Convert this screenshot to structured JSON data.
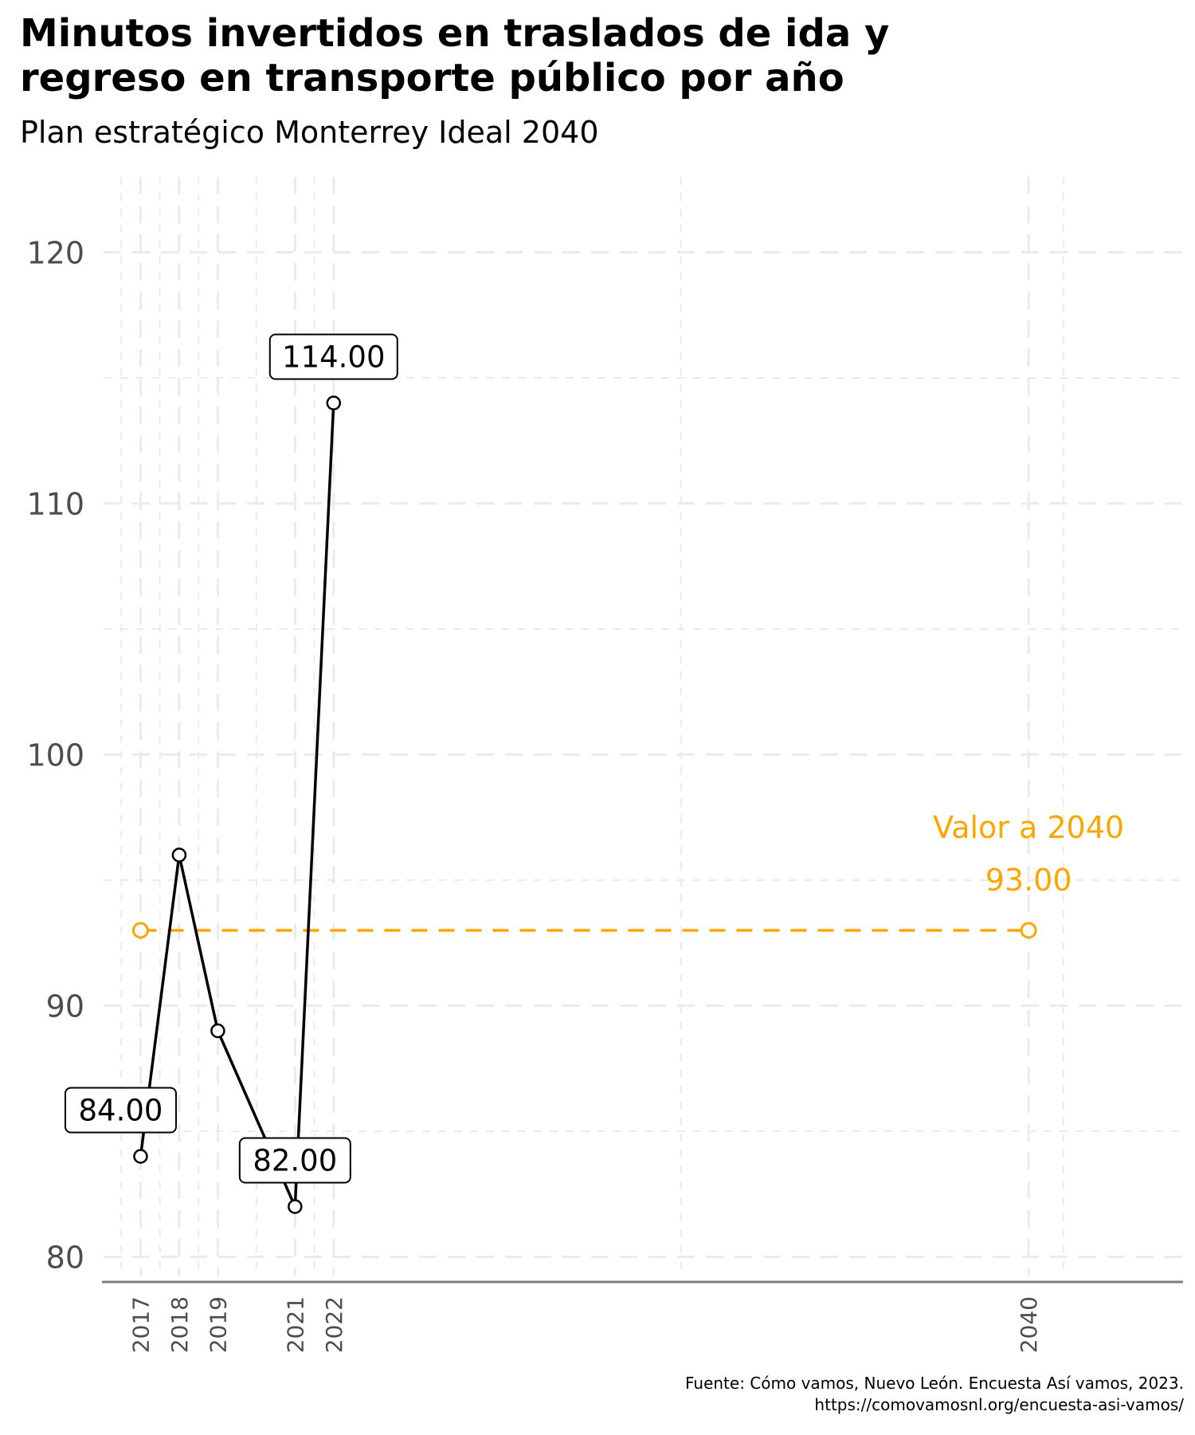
{
  "chart_data": {
    "type": "line",
    "title_lines": [
      "Minutos invertidos en traslados de ida y",
      "regreso en transporte público por año"
    ],
    "subtitle": "Plan estratégico Monterrey Ideal 2040",
    "xlabel": "",
    "ylabel": "",
    "xlim": [
      2016,
      2044
    ],
    "ylim": [
      79,
      123
    ],
    "x_ticks": [
      2017,
      2018,
      2019,
      2021,
      2022,
      2040
    ],
    "y_ticks": [
      80,
      90,
      100,
      110,
      120
    ],
    "grid": true,
    "series": [
      {
        "color": "#000000",
        "points": [
          {
            "x": 2017,
            "y": 84
          },
          {
            "x": 2018,
            "y": 96
          },
          {
            "x": 2019,
            "y": 89
          },
          {
            "x": 2021,
            "y": 82
          },
          {
            "x": 2022,
            "y": 114
          }
        ]
      }
    ],
    "data_labels": [
      {
        "x": 2017,
        "y": 84,
        "text": "84.00"
      },
      {
        "x": 2021,
        "y": 82,
        "text": "82.00"
      },
      {
        "x": 2022,
        "y": 114,
        "text": "114.00"
      }
    ],
    "target": {
      "color": "#FFA500",
      "x_start": 2017,
      "x_end": 2040,
      "y": 93,
      "label": "Valor a 2040",
      "value_label": "93.00"
    },
    "caption_lines": [
      "Fuente: Cómo vamos, Nuevo León. Encuesta Así vamos, 2023.",
      "https://comovamosnl.org/encuesta-asi-vamos/"
    ]
  }
}
